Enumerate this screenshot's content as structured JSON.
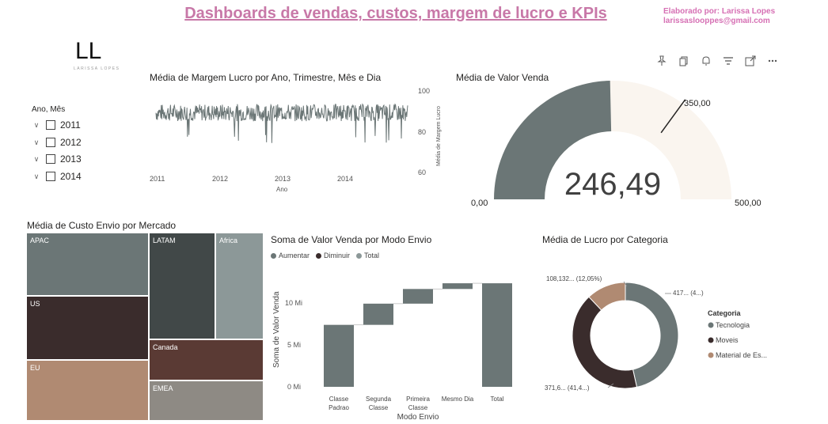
{
  "header": {
    "title": "Dashboards de vendas, custos, margem de lucro e KPIs",
    "author_line1": "Elaborado por: Larissa Lopes",
    "author_line2": "larissaslooppes@gmail.com",
    "logo_text": "LL",
    "logo_ring_text": "LARISSA LOPES"
  },
  "toolbar": {
    "icons": [
      "pin-icon",
      "copy-icon",
      "bell-icon",
      "filter-icon",
      "expand-icon",
      "more-icon"
    ],
    "glyphs": [
      "⚲",
      "❐",
      "🔔",
      "☰",
      "⤢",
      "⋯"
    ]
  },
  "slicer": {
    "title": "Ano, Mês",
    "items": [
      "2011",
      "2012",
      "2013",
      "2014"
    ]
  },
  "line_chart": {
    "title": "Média de Margem Lucro por Ano, Trimestre, Mês e Dia",
    "x_ticks": [
      "2011",
      "2012",
      "2013",
      "2014"
    ],
    "x_label": "Ano",
    "y_ticks": [
      "100",
      "80",
      "60"
    ],
    "y_label": "Média de Margem Lucro",
    "color": "#6b7676"
  },
  "gauge": {
    "title": "Média de Valor Venda",
    "value_label": "246,49",
    "min_label": "0,00",
    "max_label": "500,00",
    "target_label": "350,00",
    "fill_color": "#6b7676",
    "track_color": "#faf5ef"
  },
  "treemap": {
    "title": "Média de Custo Envio por Mercado",
    "cells": [
      {
        "label": "APAC",
        "color": "#6b7676"
      },
      {
        "label": "US",
        "color": "#3a2c2c"
      },
      {
        "label": "EU",
        "color": "#b08a72"
      },
      {
        "label": "LATAM",
        "color": "#414848"
      },
      {
        "label": "Africa",
        "color": "#8c9898"
      },
      {
        "label": "Canada",
        "color": "#5a3a34"
      },
      {
        "label": "EMEA",
        "color": "#8e8a84"
      }
    ]
  },
  "waterfall": {
    "title": "Soma de Valor Venda por Modo Envio",
    "legend": [
      {
        "label": "Aumentar",
        "color": "#6b7676"
      },
      {
        "label": "Diminuir",
        "color": "#3a2c2c"
      },
      {
        "label": "Total",
        "color": "#8c9898"
      }
    ],
    "y_label": "Soma de Valor Venda",
    "x_label": "Modo Envio",
    "y_ticks": [
      "10 Mi",
      "5 Mi",
      "0 Mi"
    ],
    "categories": [
      {
        "line1": "Classe",
        "line2": "Padrao"
      },
      {
        "line1": "Segunda",
        "line2": "Classe"
      },
      {
        "line1": "Primeira",
        "line2": "Classe"
      },
      {
        "line1": "Mesmo Dia",
        "line2": ""
      },
      {
        "line1": "Total",
        "line2": ""
      }
    ]
  },
  "chart_data": [
    {
      "type": "line",
      "title": "Média de Margem Lucro por Ano, Trimestre, Mês e Dia",
      "xlabel": "Ano",
      "ylabel": "Média de Margem Lucro",
      "x_ticks": [
        "2011",
        "2012",
        "2013",
        "2014"
      ],
      "ylim": [
        60,
        100
      ],
      "series_range": {
        "typical_low": 84,
        "typical_high": 92,
        "outlier_low": 73
      }
    },
    {
      "type": "gauge",
      "title": "Média de Valor Venda",
      "value": 246.49,
      "min": 0,
      "max": 500,
      "target": 350
    },
    {
      "type": "treemap",
      "title": "Média de Custo Envio por Mercado",
      "categories": [
        "APAC",
        "US",
        "EU",
        "LATAM",
        "Africa",
        "Canada",
        "EMEA"
      ]
    },
    {
      "type": "bar",
      "subtype": "waterfall",
      "title": "Soma de Valor Venda por Modo Envio",
      "categories": [
        "Classe Padrao",
        "Segunda Classe",
        "Primeira Classe",
        "Mesmo Dia",
        "Total"
      ],
      "increments": [
        7.6,
        2.6,
        1.8,
        0.7,
        12.7
      ],
      "ylim": [
        0,
        13
      ],
      "unit": "Mi",
      "xlabel": "Modo Envio",
      "ylabel": "Soma de Valor Venda"
    },
    {
      "type": "pie",
      "subtype": "donut",
      "title": "Média de Lucro por Categoria",
      "categories": [
        "Tecnologia",
        "Moveis",
        "Material de Es..."
      ],
      "values": [
        46.5,
        41.4,
        12.05
      ],
      "colors": [
        "#6b7676",
        "#3a2c2c",
        "#b08a72"
      ],
      "data_labels": [
        "417... (4...)",
        "371,6... (41,4...)",
        "108,132... (12,05%)"
      ],
      "legend_title": "Categoria"
    }
  ],
  "donut": {
    "title": "Média de Lucro por Categoria",
    "legend_title": "Categoria",
    "legend": [
      "Tecnologia",
      "Moveis",
      "Material de Es..."
    ],
    "labels": [
      "417... (4...)",
      "371,6... (41,4...)",
      "108,132... (12,05%)"
    ]
  }
}
